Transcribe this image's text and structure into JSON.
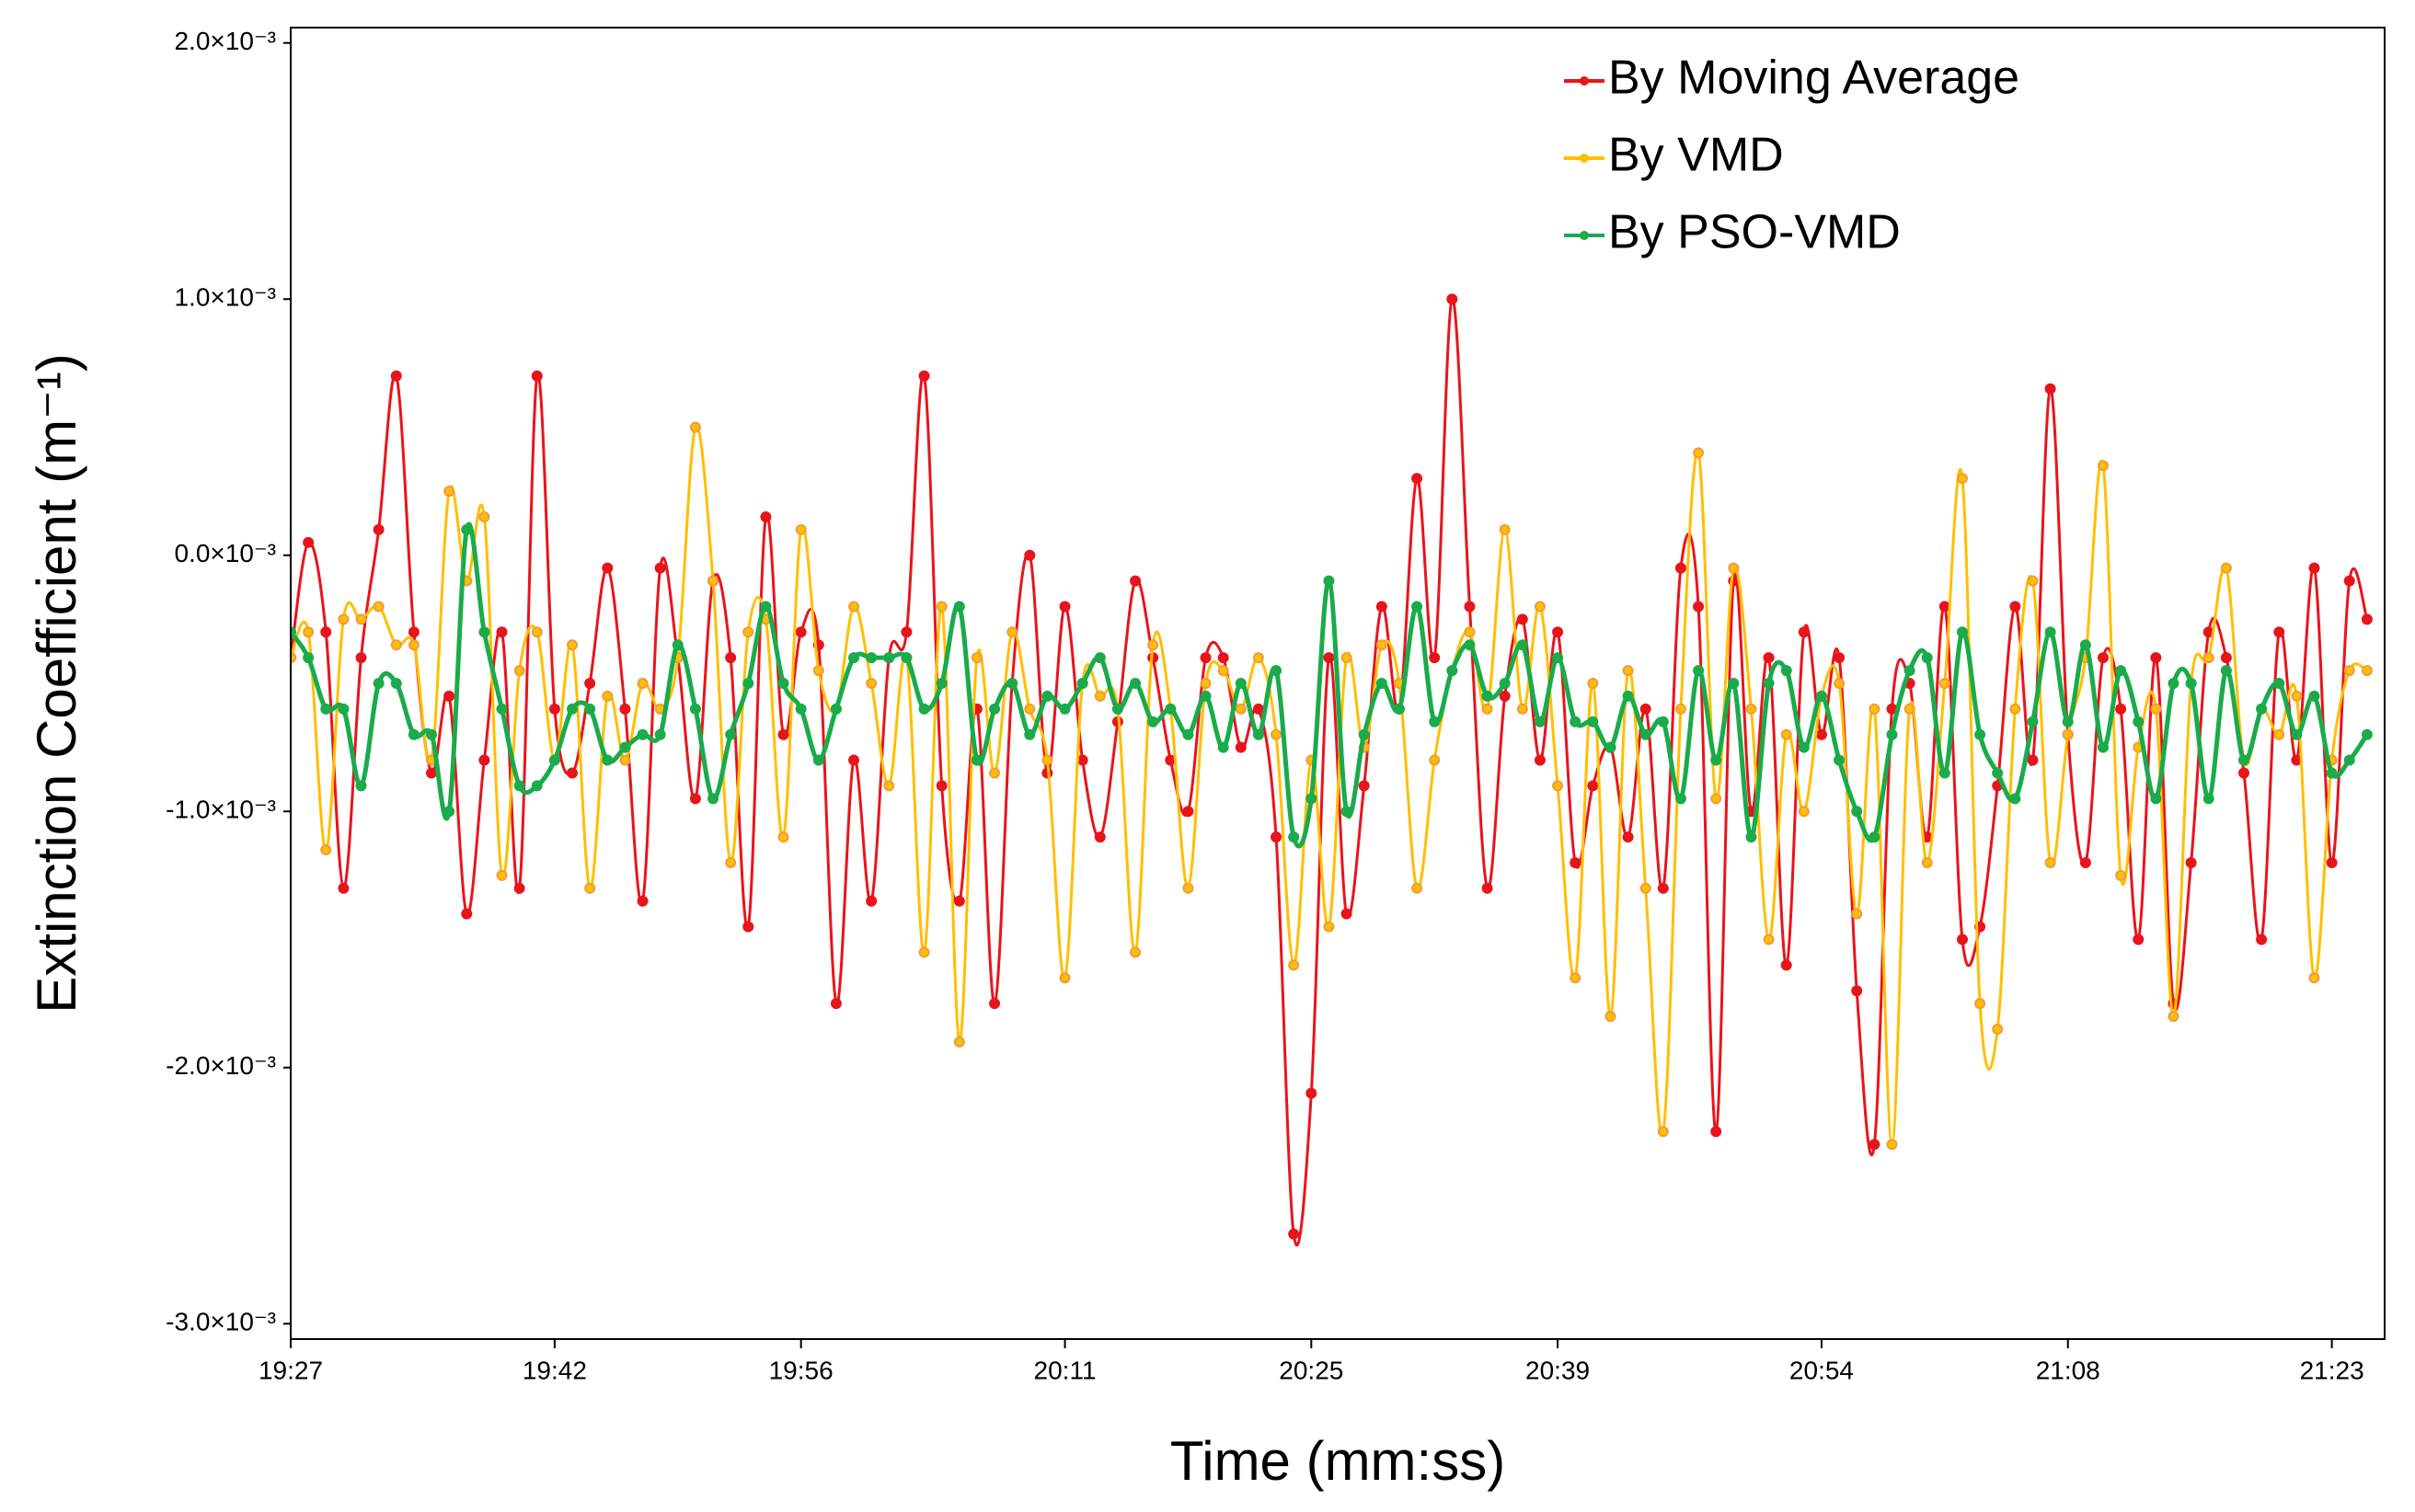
{
  "chart_data": {
    "type": "line",
    "x_label": "Time (mm:ss)",
    "y_label": "Extinction Coefficient (m⁻¹)",
    "xlim": [
      1167,
      1286
    ],
    "ylim": [
      -0.00306,
      0.00206
    ],
    "xticks": [
      {
        "value": 1167,
        "label": "19:27"
      },
      {
        "value": 1182,
        "label": "19:42"
      },
      {
        "value": 1196,
        "label": "19:56"
      },
      {
        "value": 1211,
        "label": "20:11"
      },
      {
        "value": 1225,
        "label": "20:25"
      },
      {
        "value": 1239,
        "label": "20:39"
      },
      {
        "value": 1254,
        "label": "20:54"
      },
      {
        "value": 1268,
        "label": "21:08"
      },
      {
        "value": 1283,
        "label": "21:23"
      }
    ],
    "yticks": [
      {
        "value": 0.002,
        "label": "2.0×10⁻³"
      },
      {
        "value": 0.001,
        "label": "1.0×10⁻³"
      },
      {
        "value": 0,
        "label": "0.0×10⁻³"
      },
      {
        "value": -0.001,
        "label": "-1.0×10⁻³"
      },
      {
        "value": -0.002,
        "label": "-2.0×10⁻³"
      },
      {
        "value": -0.003,
        "label": "-3.0×10⁻³"
      }
    ],
    "grid": false,
    "legend": "upper right",
    "x": [
      1167,
      1168,
      1169,
      1170,
      1171,
      1172,
      1173,
      1174,
      1175,
      1176,
      1177,
      1178,
      1179,
      1180,
      1181,
      1182,
      1183,
      1184,
      1185,
      1186,
      1187,
      1188,
      1189,
      1190,
      1191,
      1192,
      1193,
      1194,
      1195,
      1196,
      1197,
      1198,
      1199,
      1200,
      1201,
      1202,
      1203,
      1204,
      1205,
      1206,
      1207,
      1208,
      1209,
      1210,
      1211,
      1212,
      1213,
      1214,
      1215,
      1216,
      1217,
      1218,
      1219,
      1220,
      1221,
      1222,
      1223,
      1224,
      1225,
      1226,
      1227,
      1228,
      1229,
      1230,
      1231,
      1232,
      1233,
      1234,
      1235,
      1236,
      1237,
      1238,
      1239,
      1240,
      1241,
      1242,
      1243,
      1244,
      1245,
      1246,
      1247,
      1248,
      1249,
      1250,
      1251,
      1252,
      1253,
      1254,
      1255,
      1256,
      1257,
      1258,
      1259,
      1260,
      1261,
      1262,
      1263,
      1264,
      1265,
      1266,
      1267,
      1268,
      1269,
      1270,
      1271,
      1272,
      1273,
      1274,
      1275,
      1276,
      1277,
      1278,
      1279,
      1280,
      1281,
      1282,
      1283,
      1284,
      1285
    ],
    "series": [
      {
        "name": "By Moving Average",
        "color": "#e8141c",
        "values": [
          -0.0004,
          5e-05,
          -0.0003,
          -0.0013,
          -0.0004,
          0.0001,
          0.0007,
          -0.0003,
          -0.00085,
          -0.00055,
          -0.0014,
          -0.0008,
          -0.0003,
          -0.0013,
          0.0007,
          -0.0006,
          -0.00085,
          -0.0005,
          -5e-05,
          -0.0006,
          -0.00135,
          -5e-05,
          -0.0004,
          -0.00095,
          -0.0001,
          -0.0004,
          -0.00145,
          0.00015,
          -0.0007,
          -0.0003,
          -0.00035,
          -0.00175,
          -0.0008,
          -0.00135,
          -0.0004,
          -0.0003,
          0.0007,
          -0.0009,
          -0.00135,
          -0.0006,
          -0.00175,
          -0.0005,
          0.0,
          -0.00085,
          -0.0002,
          -0.0008,
          -0.0011,
          -0.00065,
          -0.0001,
          -0.0004,
          -0.0008,
          -0.001,
          -0.0004,
          -0.0004,
          -0.00075,
          -0.0006,
          -0.0011,
          -0.00265,
          -0.0021,
          -0.0004,
          -0.0014,
          -0.0009,
          -0.0002,
          -0.0006,
          0.0003,
          -0.0004,
          0.001,
          -0.0002,
          -0.0013,
          -0.00055,
          -0.00025,
          -0.0008,
          -0.0003,
          -0.0012,
          -0.0009,
          -0.00075,
          -0.0011,
          -0.0006,
          -0.0013,
          -5e-05,
          -0.0002,
          -0.00225,
          -0.0001,
          -0.001,
          -0.0004,
          -0.0016,
          -0.0003,
          -0.0007,
          -0.0004,
          -0.0017,
          -0.0023,
          -0.0006,
          -0.0005,
          -0.0011,
          -0.0002,
          -0.0015,
          -0.00145,
          -0.0009,
          -0.0002,
          -0.0008,
          0.00065,
          -0.0007,
          -0.0012,
          -0.0004,
          -0.0006,
          -0.0015,
          -0.0004,
          -0.00175,
          -0.0012,
          -0.0003,
          -0.0004,
          -0.00085,
          -0.0015,
          -0.0003,
          -0.0008,
          -5e-05,
          -0.0012,
          -0.0001,
          -0.00025
        ]
      },
      {
        "name": "By VMD",
        "color": "#ffbf00",
        "values": [
          -0.0004,
          -0.0003,
          -0.00115,
          -0.00025,
          -0.00025,
          -0.0002,
          -0.00035,
          -0.00035,
          -0.0008,
          0.00025,
          -0.0001,
          0.00015,
          -0.00125,
          -0.00045,
          -0.0003,
          -0.0008,
          -0.00035,
          -0.0013,
          -0.00055,
          -0.0008,
          -0.0005,
          -0.0006,
          -0.0004,
          0.0005,
          -0.0001,
          -0.0012,
          -0.0003,
          -0.00025,
          -0.0011,
          0.0001,
          -0.00045,
          -0.0006,
          -0.0002,
          -0.0005,
          -0.0009,
          -0.0004,
          -0.00155,
          -0.0002,
          -0.0019,
          -0.0004,
          -0.00085,
          -0.0003,
          -0.0006,
          -0.0008,
          -0.00165,
          -0.0005,
          -0.00055,
          -0.0006,
          -0.00155,
          -0.00035,
          -0.0006,
          -0.0013,
          -0.0005,
          -0.00045,
          -0.0006,
          -0.0004,
          -0.0007,
          -0.0016,
          -0.0008,
          -0.00145,
          -0.0004,
          -0.00075,
          -0.00035,
          -0.0005,
          -0.0013,
          -0.0008,
          -0.00045,
          -0.0003,
          -0.0006,
          0.0001,
          -0.0006,
          -0.0002,
          -0.0009,
          -0.00165,
          -0.0005,
          -0.0018,
          -0.00045,
          -0.0013,
          -0.00225,
          -0.0006,
          0.0004,
          -0.00095,
          -5e-05,
          -0.0006,
          -0.0015,
          -0.0007,
          -0.001,
          -0.00055,
          -0.0005,
          -0.0014,
          -0.0006,
          -0.0023,
          -0.0006,
          -0.0012,
          -0.0005,
          0.0003,
          -0.00175,
          -0.00185,
          -0.0006,
          -0.0001,
          -0.0012,
          -0.0007,
          -0.0004,
          0.00035,
          -0.00125,
          -0.00075,
          -0.0006,
          -0.0018,
          -0.0005,
          -0.0004,
          -5e-05,
          -0.0008,
          -0.0006,
          -0.0007,
          -0.00055,
          -0.00165,
          -0.0008,
          -0.00045,
          -0.00045
        ]
      },
      {
        "name": "By PSO-VMD",
        "color": "#1aab4b",
        "values": [
          -0.0003,
          -0.0004,
          -0.0006,
          -0.0006,
          -0.0009,
          -0.0005,
          -0.0005,
          -0.0007,
          -0.0007,
          -0.001,
          0.0001,
          -0.0003,
          -0.0006,
          -0.0009,
          -0.0009,
          -0.0008,
          -0.0006,
          -0.0006,
          -0.0008,
          -0.00075,
          -0.0007,
          -0.0007,
          -0.00035,
          -0.0006,
          -0.00095,
          -0.0007,
          -0.0005,
          -0.0002,
          -0.0005,
          -0.0006,
          -0.0008,
          -0.0006,
          -0.0004,
          -0.0004,
          -0.0004,
          -0.0004,
          -0.0006,
          -0.0005,
          -0.0002,
          -0.0008,
          -0.0006,
          -0.0005,
          -0.0007,
          -0.00055,
          -0.0006,
          -0.0005,
          -0.0004,
          -0.0006,
          -0.0005,
          -0.00065,
          -0.0006,
          -0.0007,
          -0.00055,
          -0.00075,
          -0.0005,
          -0.0007,
          -0.00045,
          -0.0011,
          -0.00095,
          -0.0001,
          -0.001,
          -0.0007,
          -0.0005,
          -0.0006,
          -0.0002,
          -0.00065,
          -0.00045,
          -0.00035,
          -0.00055,
          -0.0005,
          -0.00035,
          -0.00065,
          -0.0004,
          -0.00065,
          -0.00065,
          -0.00075,
          -0.00055,
          -0.0007,
          -0.00065,
          -0.00095,
          -0.00045,
          -0.0008,
          -0.0005,
          -0.0011,
          -0.0005,
          -0.00045,
          -0.00075,
          -0.00055,
          -0.0008,
          -0.001,
          -0.0011,
          -0.0007,
          -0.00045,
          -0.0004,
          -0.00085,
          -0.0003,
          -0.0007,
          -0.00085,
          -0.00095,
          -0.00065,
          -0.0003,
          -0.00065,
          -0.00035,
          -0.00075,
          -0.00045,
          -0.00065,
          -0.00095,
          -0.0005,
          -0.0005,
          -0.00095,
          -0.00045,
          -0.0008,
          -0.0006,
          -0.0005,
          -0.0007,
          -0.00055,
          -0.00085,
          -0.0008,
          -0.0007
        ]
      }
    ]
  }
}
